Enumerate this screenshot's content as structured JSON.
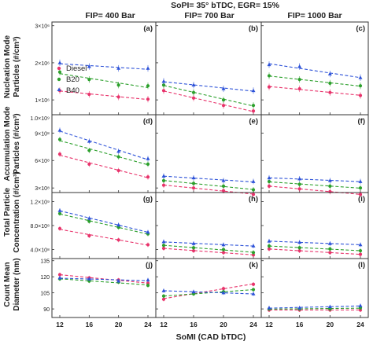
{
  "figure": {
    "super_title": "SoPI= 35° bTDC, EGR= 15%",
    "column_titles": [
      "FIP= 400 Bar",
      "FIP= 700 Bar",
      "FIP= 1000 Bar"
    ],
    "x_axis_label": "SoMI (CAD bTDC)",
    "row_labels": [
      [
        "Nucleation Mode",
        "Particles (#/cm³)"
      ],
      [
        "Accumulation Mode",
        "Particles (#/cm³)"
      ],
      [
        "Total Particle",
        "Concentration (#/cm³)"
      ],
      [
        "Count Mean",
        "Diameter (nm)"
      ]
    ],
    "legend": [
      {
        "name": "Diesel",
        "color": "#e8336b"
      },
      {
        "name": "B20",
        "color": "#2ca02c"
      },
      {
        "name": "B40",
        "color": "#2d52d8"
      }
    ]
  },
  "chart_data": {
    "type": "scatter",
    "x": [
      12,
      16,
      20,
      24
    ],
    "xticks": [
      "12",
      "16",
      "20",
      "24"
    ],
    "panel_letters": [
      "(a)",
      "(b)",
      "(c)",
      "(d)",
      "(e)",
      "(f)",
      "(g)",
      "(h)",
      "(i)",
      "(j)",
      "(k)",
      "(l)"
    ],
    "rows": [
      {
        "ylim": [
          600000,
          3100000
        ],
        "yticks": [
          {
            "v": 1000000,
            "label": "1×10⁶"
          },
          {
            "v": 2000000,
            "label": "2×10⁶"
          },
          {
            "v": 3000000,
            "label": "3×10⁶"
          }
        ],
        "panels": [
          {
            "Diesel": [
              1250000,
              1150000,
              1080000,
              1020000
            ],
            "B20": [
              1750000,
              1550000,
              1400000,
              1380000
            ],
            "B40": [
              2000000,
              1900000,
              1850000,
              1850000
            ]
          },
          {
            "Diesel": [
              1250000,
              1050000,
              850000,
              700000
            ],
            "B20": [
              1400000,
              1200000,
              1000000,
              850000
            ],
            "B40": [
              1500000,
              1400000,
              1300000,
              1250000
            ]
          },
          {
            "Diesel": [
              1350000,
              1300000,
              1200000,
              1120000
            ],
            "B20": [
              1650000,
              1550000,
              1450000,
              1380000
            ],
            "B40": [
              1950000,
              1900000,
              1700000,
              1600000
            ]
          }
        ]
      },
      {
        "ylim": [
          250000000,
          1100000000
        ],
        "yticks": [
          {
            "v": 300000000,
            "label": "3×10⁸"
          },
          {
            "v": 600000000,
            "label": "6×10⁸"
          },
          {
            "v": 900000000,
            "label": "9×10⁸"
          }
        ],
        "extra_top_label": "1.0×10⁹",
        "panels": [
          {
            "Diesel": [
              670000000,
              560000000,
              490000000,
              420000000
            ],
            "B20": [
              830000000,
              710000000,
              640000000,
              560000000
            ],
            "B40": [
              930000000,
              810000000,
              700000000,
              620000000
            ]
          },
          {
            "Diesel": [
              330000000,
              300000000,
              270000000,
              230000000
            ],
            "B20": [
              380000000,
              350000000,
              320000000,
              280000000
            ],
            "B40": [
              430000000,
              410000000,
              380000000,
              370000000
            ]
          },
          {
            "Diesel": [
              320000000,
              290000000,
              260000000,
              230000000
            ],
            "B20": [
              370000000,
              340000000,
              320000000,
              300000000
            ],
            "B40": [
              410000000,
              400000000,
              380000000,
              370000000
            ]
          }
        ]
      },
      {
        "ylim": [
          250000000,
          1350000000
        ],
        "yticks": [
          {
            "v": 400000000,
            "label": "4.0×10⁸"
          },
          {
            "v": 800000000,
            "label": "8.0×10⁸"
          },
          {
            "v": 1200000000,
            "label": "1.2×10⁹"
          }
        ],
        "panels": [
          {
            "Diesel": [
              750000000,
              630000000,
              560000000,
              480000000
            ],
            "B20": [
              1000000000,
              870000000,
              770000000,
              660000000
            ],
            "B40": [
              1050000000,
              920000000,
              810000000,
              690000000
            ]
          },
          {
            "Diesel": [
              420000000,
              380000000,
              350000000,
              310000000
            ],
            "B20": [
              470000000,
              430000000,
              400000000,
              350000000
            ],
            "B40": [
              530000000,
              500000000,
              480000000,
              460000000
            ]
          },
          {
            "Diesel": [
              410000000,
              380000000,
              350000000,
              320000000
            ],
            "B20": [
              460000000,
              430000000,
              410000000,
              380000000
            ],
            "B40": [
              540000000,
              520000000,
              500000000,
              480000000
            ]
          }
        ]
      },
      {
        "ylim": [
          82,
          137
        ],
        "yticks": [
          {
            "v": 90,
            "label": "90"
          },
          {
            "v": 105,
            "label": "105"
          },
          {
            "v": 120,
            "label": "120"
          },
          {
            "v": 135,
            "label": "135"
          }
        ],
        "panels": [
          {
            "Diesel": [
              122,
              119,
              117,
              114
            ],
            "B20": [
              118,
              116,
              115,
              112
            ],
            "B40": [
              119,
              118,
              116,
              117
            ]
          },
          {
            "Diesel": [
              99,
              105,
              109,
              113
            ],
            "B20": [
              102,
              104,
              106,
              108
            ],
            "B40": [
              107,
              106,
              105,
              104
            ]
          },
          {
            "Diesel": [
              89,
              89,
              89,
              89
            ],
            "B20": [
              90,
              90,
              90,
              91
            ],
            "B40": [
              91,
              91,
              92,
              93
            ]
          }
        ]
      }
    ]
  }
}
